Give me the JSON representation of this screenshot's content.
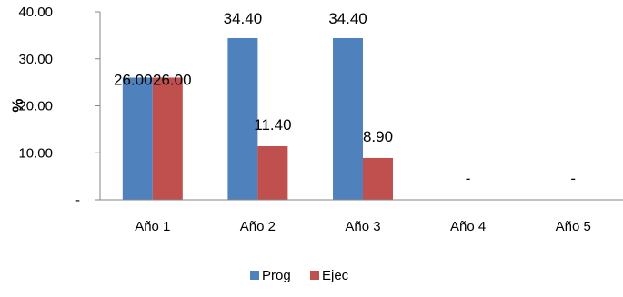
{
  "chart_data": {
    "type": "bar",
    "title": "",
    "xlabel": "",
    "ylabel": "%",
    "categories": [
      "Año 1",
      "Año 2",
      "Año 3",
      "Año 4",
      "Año 5"
    ],
    "series": [
      {
        "name": "Prog",
        "color": "#4f81bd",
        "values": [
          26.0,
          34.4,
          34.4,
          null,
          null
        ],
        "labels": [
          "26.00",
          "34.40",
          "34.40",
          "-",
          "-"
        ]
      },
      {
        "name": "Ejec",
        "color": "#c0504d",
        "values": [
          26.0,
          11.4,
          8.9,
          null,
          null
        ],
        "labels": [
          "26.00",
          "11.40",
          "8.90",
          "",
          ""
        ]
      }
    ],
    "ylim": [
      0,
      40
    ],
    "yticks": [
      0,
      10,
      20,
      30,
      40
    ],
    "ytick_labels": [
      "-",
      "10.00",
      "20.00",
      "30.00",
      "40.00"
    ],
    "grid": false,
    "legend": "bottom"
  }
}
